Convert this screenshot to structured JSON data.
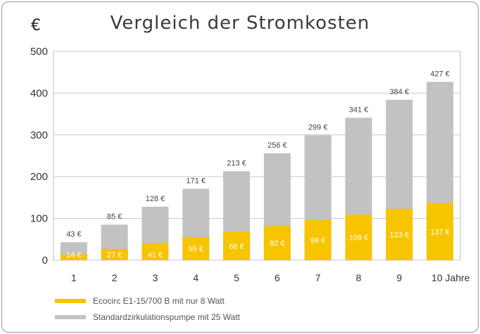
{
  "chart_data": {
    "type": "bar",
    "title": "Vergleich der Stromkosten",
    "ylabel": "€",
    "xlabel": "Jahre",
    "ylim": [
      0,
      500
    ],
    "yticks": [
      0,
      100,
      200,
      300,
      400,
      500
    ],
    "categories": [
      "1",
      "2",
      "3",
      "4",
      "5",
      "6",
      "7",
      "8",
      "9",
      "10 Jahre"
    ],
    "grid": true,
    "overlap": true,
    "series": [
      {
        "name": "Standardzirkulationspumpe mit 25 Watt",
        "color": "#c2c2c2",
        "values": [
          43,
          85,
          128,
          171,
          213,
          256,
          299,
          341,
          384,
          427
        ],
        "labels": [
          "43 €",
          "85 €",
          "128 €",
          "171 €",
          "213 €",
          "256 €",
          "299 €",
          "341 €",
          "384 €",
          "427 €"
        ]
      },
      {
        "name": "Ecocirc E1-15/700 B mit nur 8 Watt",
        "color": "#f7c400",
        "values": [
          14,
          27,
          41,
          55,
          68,
          82,
          96,
          109,
          123,
          137
        ],
        "labels": [
          "14 €",
          "27 €",
          "41 €",
          "55 €",
          "68 €",
          "82 €",
          "96 €",
          "109 €",
          "123 €",
          "137 €"
        ]
      }
    ]
  }
}
